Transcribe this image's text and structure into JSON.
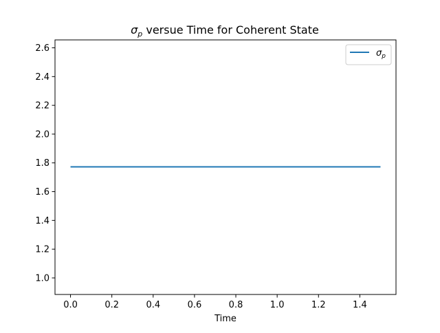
{
  "chart_data": {
    "type": "line",
    "title": "σp versue Time for Coherent State",
    "title_parts": {
      "symbol": "σ",
      "subscript": "p",
      "rest": " versue Time for Coherent State"
    },
    "xlabel": "Time",
    "ylabel": "",
    "xlim": [
      -0.075,
      1.575
    ],
    "ylim": [
      0.885,
      2.655
    ],
    "x_ticks": [
      0.0,
      0.2,
      0.4,
      0.6,
      0.8,
      1.0,
      1.2,
      1.4
    ],
    "x_tick_labels": [
      "0.0",
      "0.2",
      "0.4",
      "0.6",
      "0.8",
      "1.0",
      "1.2",
      "1.4"
    ],
    "y_ticks": [
      1.0,
      1.2,
      1.4,
      1.6,
      1.8,
      2.0,
      2.2,
      2.4,
      2.6
    ],
    "y_tick_labels": [
      "1.0",
      "1.2",
      "1.4",
      "1.6",
      "1.8",
      "2.0",
      "2.2",
      "2.4",
      "2.6"
    ],
    "grid": false,
    "legend_position": "top-right",
    "series": [
      {
        "name": "σp",
        "name_parts": {
          "symbol": "σ",
          "subscript": "p"
        },
        "color": "#1f77b4",
        "x": [
          0.0,
          1.5
        ],
        "y": [
          1.7725,
          1.7725
        ]
      }
    ]
  }
}
